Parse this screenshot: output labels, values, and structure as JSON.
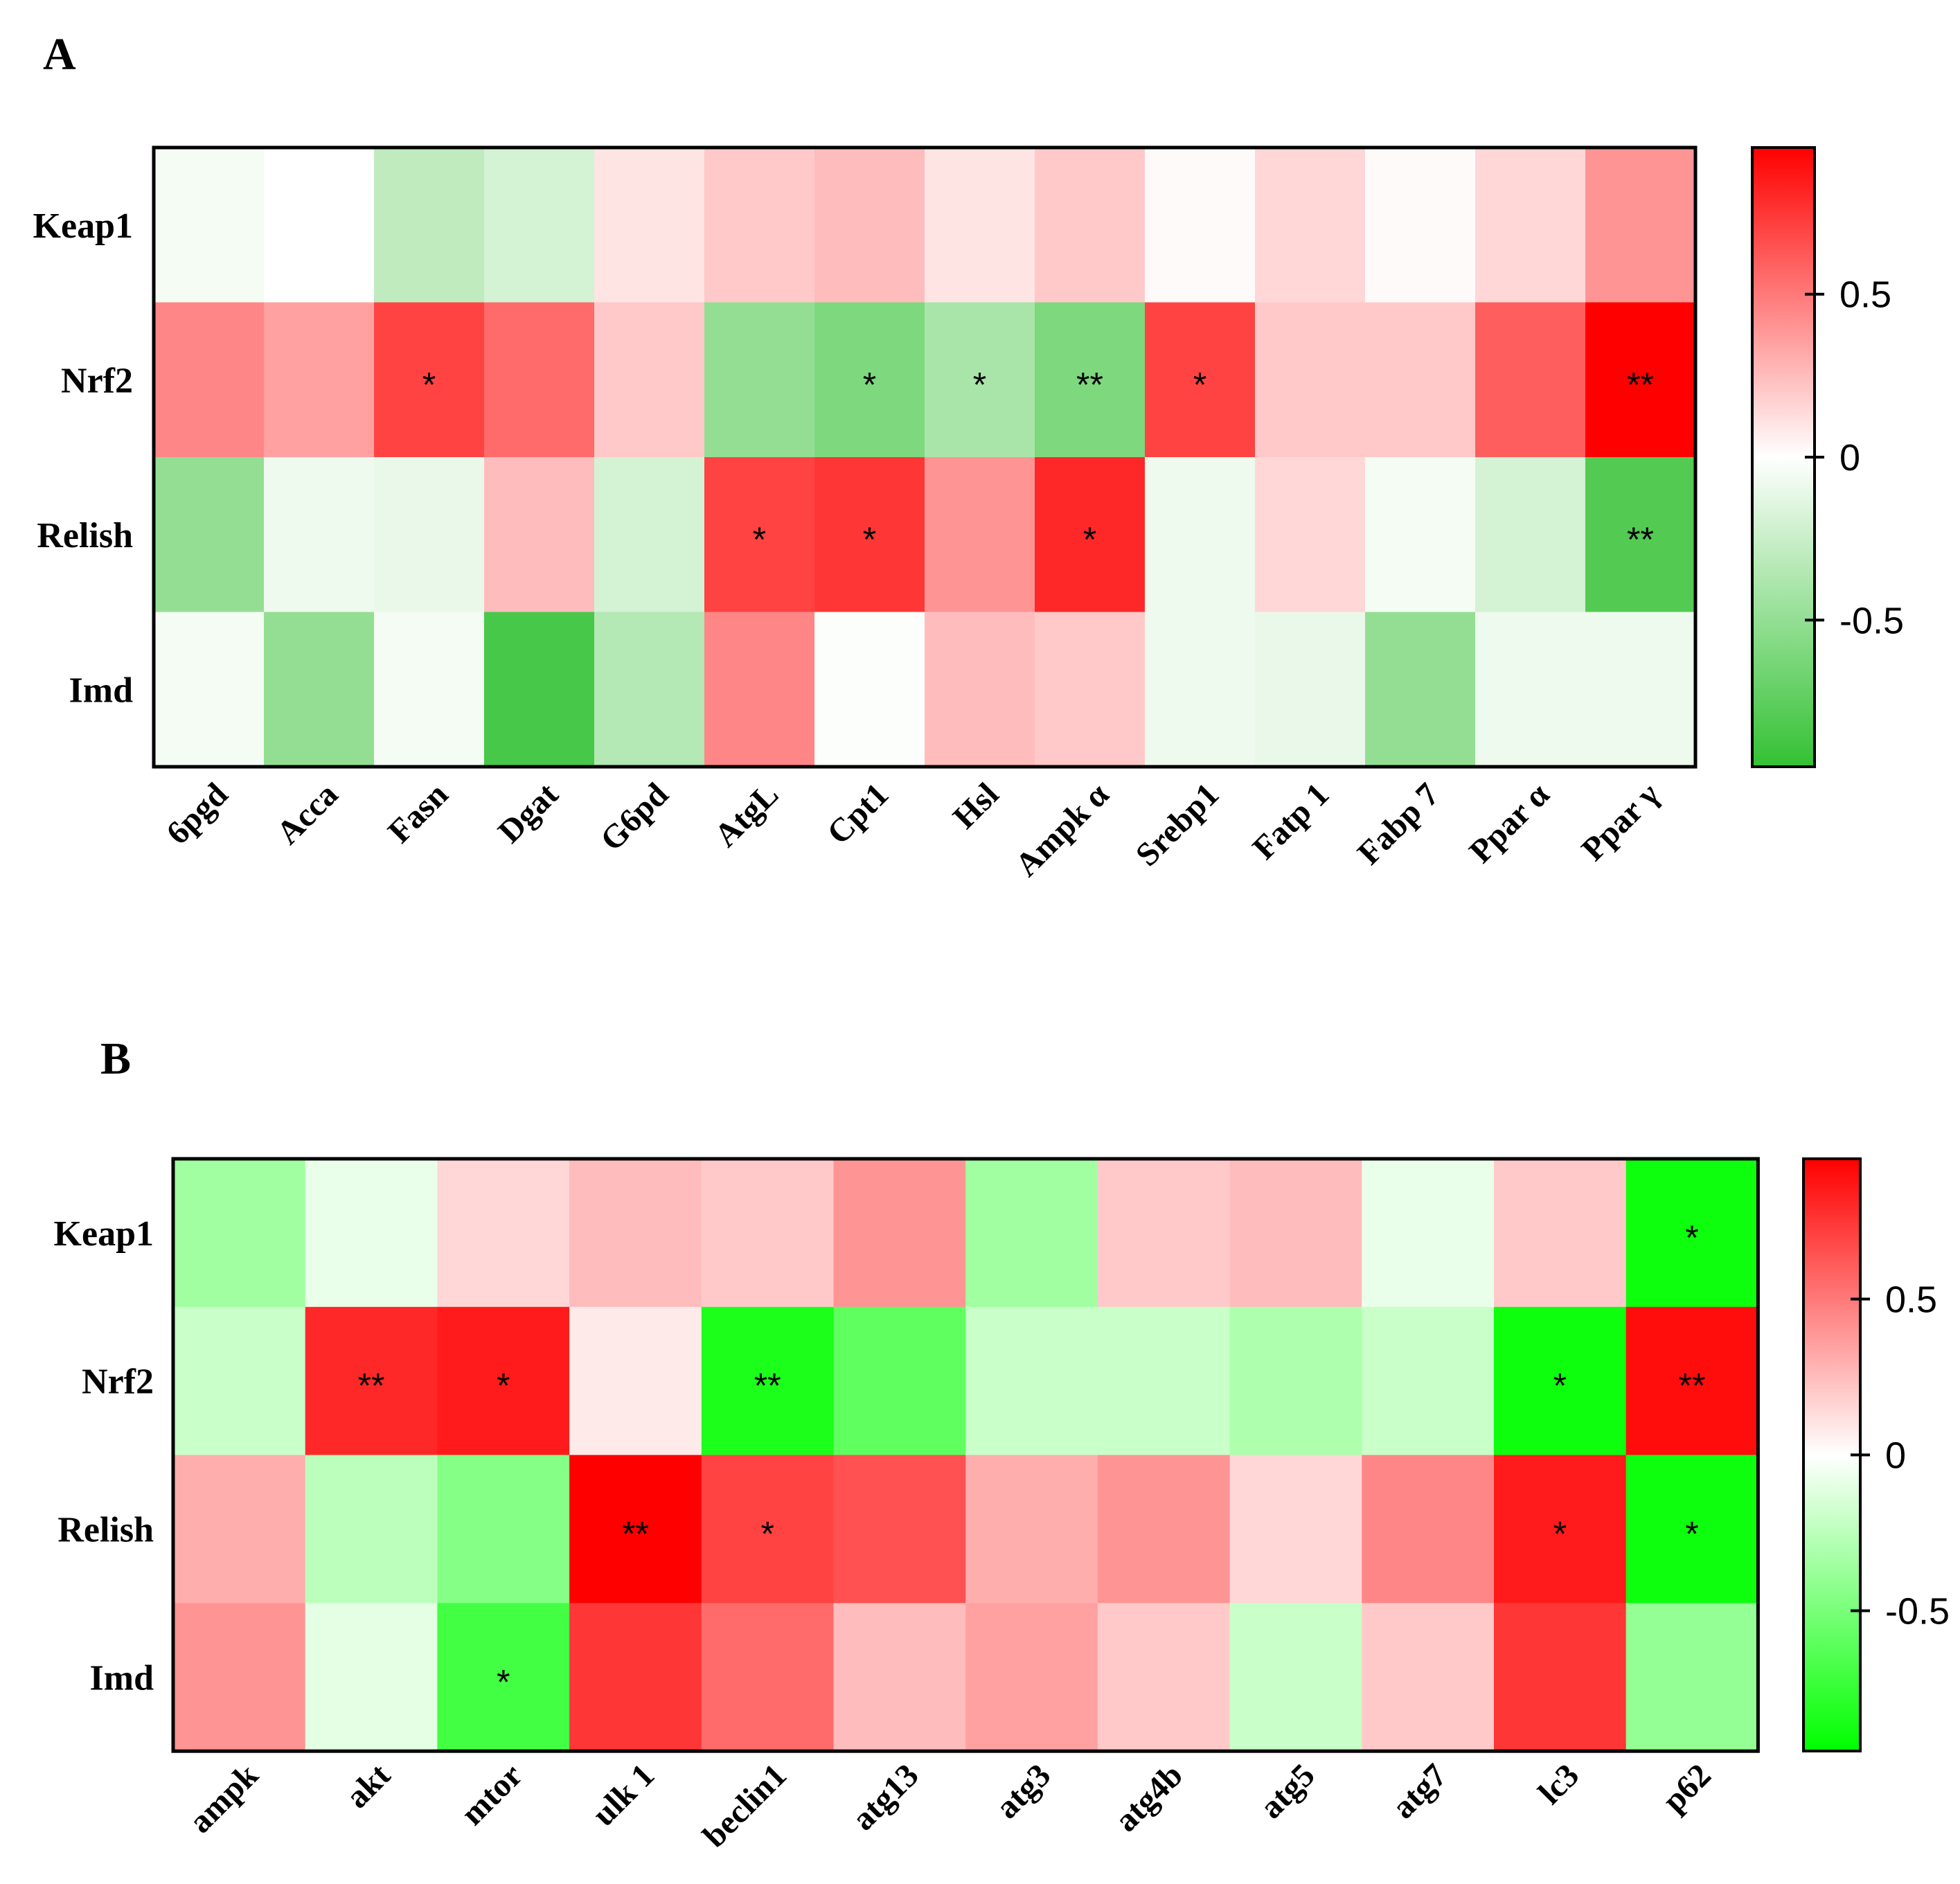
{
  "chart_data": [
    {
      "type": "heatmap",
      "panel": "A",
      "rows": [
        "Keap1",
        "Nrf2",
        "Relish",
        "Imd"
      ],
      "columns": [
        "6pgd",
        "Acca",
        "Fasn",
        "Dgat",
        "G6pd",
        "AtgL",
        "Cpt1",
        "Hsl",
        "Ampk α",
        "Srebp1",
        "Fatp 1",
        "Fabp 7",
        "Ppar α",
        "Ppar γ"
      ],
      "values": [
        [
          -0.05,
          0.0,
          -0.3,
          -0.2,
          0.1,
          0.2,
          0.25,
          0.1,
          0.2,
          0.02,
          0.15,
          0.02,
          0.15,
          0.4
        ],
        [
          0.45,
          0.35,
          0.7,
          0.55,
          0.2,
          -0.5,
          -0.6,
          -0.4,
          -0.6,
          0.7,
          0.2,
          0.2,
          0.6,
          0.95
        ],
        [
          -0.5,
          -0.08,
          -0.1,
          0.25,
          -0.2,
          0.7,
          0.75,
          0.4,
          0.8,
          -0.08,
          0.15,
          -0.05,
          -0.2,
          -0.8
        ],
        [
          -0.05,
          -0.5,
          -0.05,
          -0.85,
          -0.35,
          0.45,
          -0.02,
          0.25,
          0.2,
          -0.08,
          -0.1,
          -0.5,
          -0.08,
          -0.08
        ]
      ],
      "significance": [
        [
          "",
          "",
          "",
          "",
          "",
          "",
          "",
          "",
          "",
          "",
          "",
          "",
          "",
          ""
        ],
        [
          "",
          "",
          "*",
          "",
          "",
          "",
          "*",
          "*",
          "**",
          "*",
          "",
          "",
          "",
          "**"
        ],
        [
          "",
          "",
          "",
          "",
          "",
          "*",
          "*",
          "",
          "*",
          "",
          "",
          "",
          "",
          "**"
        ],
        [
          "",
          "",
          "",
          "",
          "",
          "",
          "",
          "",
          "",
          "",
          "",
          "",
          "",
          ""
        ]
      ],
      "colorbar": {
        "range": [
          -0.95,
          0.95
        ],
        "ticks": [
          0.5,
          0,
          -0.5
        ],
        "tick_labels": [
          "0.5",
          "0",
          "-0.5"
        ]
      },
      "colors": {
        "positive": "#ff0000",
        "zero": "#ffffff",
        "negative": "#33c133"
      }
    },
    {
      "type": "heatmap",
      "panel": "B",
      "rows": [
        "Keap1",
        "Nrf2",
        "Relish",
        "Imd"
      ],
      "columns": [
        "ampk",
        "akt",
        "mtor",
        "ulk 1",
        "beclin1",
        "atg13",
        "atg3",
        "atg4b",
        "atg5",
        "atg7",
        "lc3",
        "p62"
      ],
      "values": [
        [
          -0.35,
          -0.08,
          0.15,
          0.25,
          0.2,
          0.4,
          -0.35,
          0.2,
          0.25,
          -0.08,
          0.2,
          -0.9
        ],
        [
          -0.2,
          0.8,
          0.85,
          0.08,
          -0.85,
          -0.6,
          -0.2,
          -0.2,
          -0.3,
          -0.2,
          -0.9,
          0.9
        ],
        [
          0.3,
          -0.25,
          -0.45,
          0.95,
          0.7,
          0.65,
          0.3,
          0.4,
          0.15,
          0.45,
          0.85,
          -0.9
        ],
        [
          0.4,
          -0.1,
          -0.7,
          0.75,
          0.55,
          0.25,
          0.35,
          0.2,
          -0.2,
          0.2,
          0.75,
          -0.4
        ]
      ],
      "significance": [
        [
          "",
          "",
          "",
          "",
          "",
          "",
          "",
          "",
          "",
          "",
          "",
          "*"
        ],
        [
          "",
          "**",
          "*",
          "",
          "**",
          "",
          "",
          "",
          "",
          "",
          "*",
          "**"
        ],
        [
          "",
          "",
          "",
          "**",
          "*",
          "",
          "",
          "",
          "",
          "",
          "*",
          "*"
        ],
        [
          "",
          "",
          "*",
          "",
          "",
          "",
          "",
          "",
          "",
          "",
          "",
          ""
        ]
      ],
      "colorbar": {
        "range": [
          -0.95,
          0.95
        ],
        "ticks": [
          0.5,
          0,
          -0.5
        ],
        "tick_labels": [
          "0.5",
          "0",
          "-0.5"
        ]
      },
      "colors": {
        "positive": "#ff0000",
        "zero": "#ffffff",
        "negative": "#00ff00"
      }
    }
  ]
}
